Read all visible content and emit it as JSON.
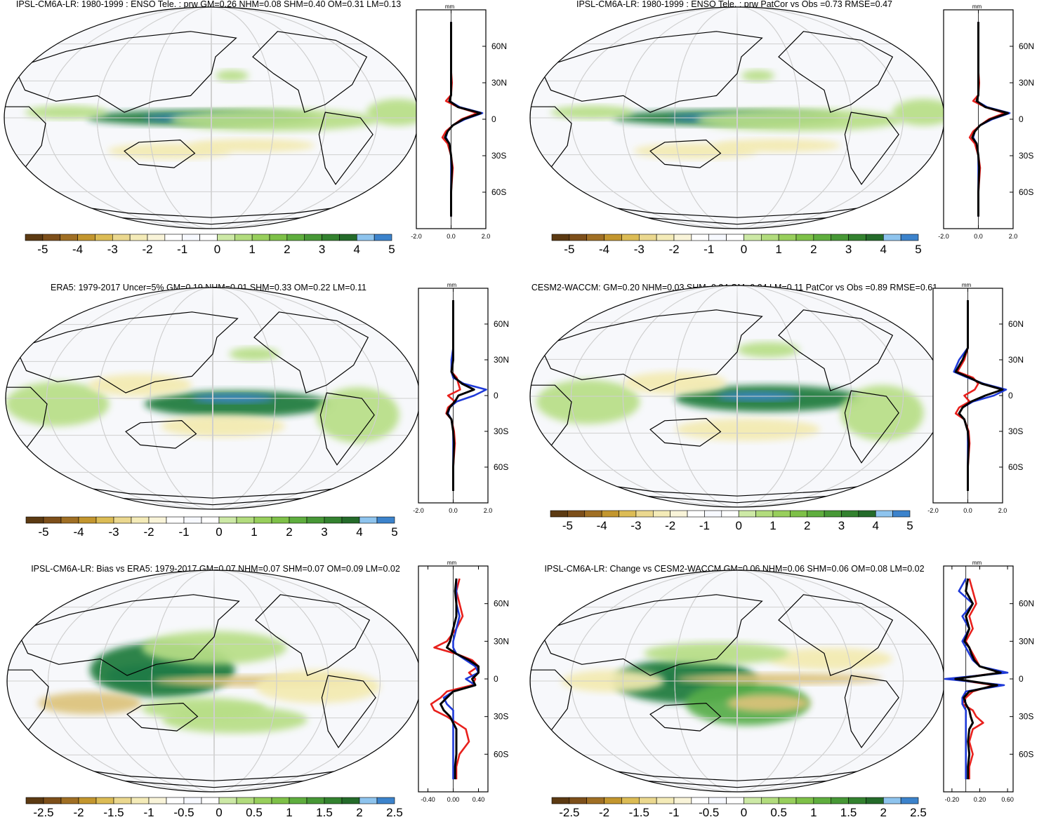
{
  "figure": {
    "colors": {
      "land_outline": "#000000",
      "ocean_background": "#f7f8fb",
      "grid": "#cfcfcf",
      "line_red": "#e8201c",
      "line_blue": "#1f3ad8",
      "line_black": "#000000",
      "pos_strong": "#1f7a3a",
      "pos_mid": "#56ad4a",
      "pos_light": "#b7de86",
      "pos_max": "#3e86d0",
      "pos_max_light": "#9ccbef",
      "neg_light": "#f3eab0",
      "neg_mid": "#dcc27a",
      "neg_strong": "#8a5a20"
    },
    "colorbar_colors": [
      "#5c3a12",
      "#7d4f1a",
      "#a06f24",
      "#c3962e",
      "#dcbc55",
      "#ebd88f",
      "#f4ebb8",
      "#f9f4d9",
      "#ffffff",
      "#f7f9ff",
      "#ffffff",
      "#cde9a6",
      "#b2dc7d",
      "#98cf5c",
      "#7ec148",
      "#5fae3e",
      "#479836",
      "#33822f",
      "#246b2a",
      "#8ec4ee",
      "#3c83cc"
    ],
    "zonal_axis_unit": "mm",
    "lat_labels": [
      "60N",
      "30N",
      "0",
      "30S",
      "60S"
    ]
  },
  "chart_data": [
    {
      "type": "heatmap",
      "title": "IPSL-CM6A-LR: 1980-1999 : ENSO Tele. : prw GM=0.26 NHM=0.08 SHM=0.40 OM=0.31 LM=0.13",
      "colorbar_labels": [
        "-5",
        "-4",
        "-3",
        "-2",
        "-1",
        "0",
        "1",
        "2",
        "3",
        "4",
        "5"
      ],
      "colorbar_range": [
        -5,
        5
      ],
      "zonal_ticks": [
        "-2.0",
        "0.0",
        "2.0"
      ],
      "zonal_xlim": [
        -2,
        2
      ],
      "zonal_profile": {
        "lat": [
          80,
          60,
          40,
          30,
          20,
          15,
          10,
          5,
          0,
          -5,
          -10,
          -15,
          -20,
          -30,
          -40,
          -60,
          -80
        ],
        "series": [
          {
            "color": "red",
            "values": [
              0,
              0,
              0,
              0.05,
              0,
              -0.3,
              0.4,
              1.5,
              0.6,
              0.1,
              -0.3,
              -0.5,
              -0.2,
              0,
              0.1,
              0,
              0
            ]
          },
          {
            "color": "blue",
            "values": [
              0,
              0,
              0,
              0,
              0,
              -0.1,
              0.5,
              1.8,
              0.8,
              0.1,
              -0.2,
              -0.3,
              -0.1,
              0,
              0,
              0,
              0
            ]
          },
          {
            "color": "black",
            "values": [
              0,
              0,
              0,
              0,
              0,
              -0.1,
              0.4,
              1.7,
              0.7,
              0.1,
              -0.2,
              -0.35,
              -0.1,
              0,
              0.05,
              0,
              0
            ]
          }
        ]
      }
    },
    {
      "type": "heatmap",
      "title": "IPSL-CM6A-LR: 1980-1999 : ENSO Tele. : prw PatCor vs Obs =0.73 RMSE=0.47",
      "colorbar_labels": [
        "-5",
        "-4",
        "-3",
        "-2",
        "-1",
        "0",
        "1",
        "2",
        "3",
        "4",
        "5"
      ],
      "colorbar_range": [
        -5,
        5
      ],
      "zonal_ticks": [
        "-2.0",
        "0.0",
        "2.0"
      ],
      "zonal_xlim": [
        -2,
        2
      ],
      "zonal_profile": {
        "lat": [
          80,
          60,
          40,
          30,
          20,
          15,
          10,
          5,
          0,
          -5,
          -10,
          -15,
          -20,
          -30,
          -40,
          -60,
          -80
        ],
        "series": [
          {
            "color": "red",
            "values": [
              0,
              0,
              0,
              0.05,
              0,
              -0.3,
              0.4,
              1.5,
              0.6,
              0.1,
              -0.3,
              -0.5,
              -0.2,
              0,
              0.1,
              0,
              0
            ]
          },
          {
            "color": "blue",
            "values": [
              0,
              0,
              0,
              0,
              0,
              -0.1,
              0.5,
              1.8,
              0.8,
              0.1,
              -0.2,
              -0.3,
              -0.1,
              0,
              0,
              0,
              0
            ]
          },
          {
            "color": "black",
            "values": [
              0,
              0,
              0,
              0,
              0,
              -0.1,
              0.4,
              1.7,
              0.7,
              0.1,
              -0.2,
              -0.35,
              -0.1,
              0,
              0.05,
              0,
              0
            ]
          }
        ]
      }
    },
    {
      "type": "heatmap",
      "title": "ERA5: 1979-2017 Uncer=5% GM=0.19 NHM=0.01 SHM=0.33 OM=0.22 LM=0.11",
      "colorbar_labels": [
        "-5",
        "-4",
        "-3",
        "-2",
        "-1",
        "0",
        "1",
        "2",
        "3",
        "4",
        "5"
      ],
      "colorbar_range": [
        -5,
        5
      ],
      "zonal_ticks": [
        "-2.0",
        "0.0",
        "2.0"
      ],
      "zonal_xlim": [
        -2,
        2
      ],
      "zonal_profile": {
        "lat": [
          80,
          60,
          40,
          30,
          20,
          15,
          10,
          5,
          0,
          -5,
          -10,
          -15,
          -20,
          -30,
          -40,
          -60,
          -80
        ],
        "series": [
          {
            "color": "red",
            "values": [
              0,
              0,
              0,
              0,
              -0.1,
              0.2,
              0.3,
              0.4,
              -0.3,
              0.1,
              -0.3,
              -0.4,
              -0.1,
              0.05,
              0.1,
              0,
              0
            ]
          },
          {
            "color": "blue",
            "values": [
              0,
              0,
              0,
              -0.1,
              -0.1,
              0,
              0.6,
              1.9,
              1.2,
              0.2,
              -0.2,
              -0.3,
              -0.1,
              0,
              0,
              0,
              0
            ]
          },
          {
            "color": "black",
            "values": [
              0,
              0,
              0,
              0,
              -0.1,
              0.1,
              0.5,
              1.2,
              0.3,
              0.1,
              -0.2,
              -0.35,
              -0.1,
              0,
              0.05,
              0,
              0
            ]
          }
        ]
      }
    },
    {
      "type": "heatmap",
      "title": "CESM2-WACCM: GM=0.20 NHM=0.03 SHM=0.34 OM=0.24 LM=0.11 PatCor vs Obs =0.89 RMSE=0.61",
      "colorbar_labels": [
        "-5",
        "-4",
        "-3",
        "-2",
        "-1",
        "0",
        "1",
        "2",
        "3",
        "4",
        "5"
      ],
      "colorbar_range": [
        -5,
        5
      ],
      "zonal_ticks": [
        "-2.0",
        "0.0",
        "2.0"
      ],
      "zonal_xlim": [
        -2,
        2
      ],
      "zonal_profile": {
        "lat": [
          80,
          60,
          40,
          30,
          20,
          15,
          10,
          5,
          0,
          -5,
          -10,
          -15,
          -20,
          -30,
          -40,
          -60,
          -80
        ],
        "series": [
          {
            "color": "red",
            "values": [
              0,
              0,
              0,
              -0.2,
              -0.6,
              0.3,
              0.6,
              0.4,
              -0.2,
              0.1,
              -0.5,
              -0.7,
              -0.2,
              0.05,
              0.1,
              0,
              0
            ]
          },
          {
            "color": "blue",
            "values": [
              0,
              0,
              0,
              -0.5,
              -0.8,
              0,
              0.9,
              2.2,
              1.5,
              0.3,
              -0.3,
              -0.5,
              -0.2,
              0,
              0,
              0,
              0
            ]
          },
          {
            "color": "black",
            "values": [
              0,
              0,
              0,
              -0.3,
              -0.7,
              0.1,
              0.8,
              2.0,
              1.0,
              0.2,
              -0.3,
              -0.5,
              -0.2,
              0,
              0.05,
              0,
              0
            ]
          }
        ]
      }
    },
    {
      "type": "heatmap",
      "title": "IPSL-CM6A-LR: Bias vs ERA5: 1979-2017 GM=0.07 NHM=0.07 SHM=0.07 OM=0.09 LM=0.02",
      "colorbar_labels": [
        "-2.5",
        "-2",
        "-1.5",
        "-1",
        "-0.5",
        "0",
        "0.5",
        "1",
        "1.5",
        "2",
        "2.5"
      ],
      "colorbar_range": [
        -2.5,
        2.5
      ],
      "zonal_ticks": [
        "-0.40",
        "0.00",
        "0.40"
      ],
      "zonal_xlim": [
        -0.55,
        0.55
      ],
      "zonal_profile": {
        "lat": [
          80,
          70,
          60,
          50,
          40,
          30,
          25,
          20,
          15,
          10,
          5,
          0,
          -5,
          -10,
          -15,
          -20,
          -25,
          -30,
          -40,
          -50,
          -60,
          -70,
          -80
        ],
        "series": [
          {
            "color": "red",
            "values": [
              0.1,
              0.05,
              0.1,
              0.15,
              0.05,
              -0.1,
              -0.3,
              0.05,
              0.3,
              0.4,
              0.25,
              0.35,
              0.3,
              -0.1,
              -0.2,
              -0.35,
              -0.3,
              -0.1,
              0.2,
              0.25,
              0.1,
              0.05,
              0.05
            ]
          },
          {
            "color": "blue",
            "values": [
              0.05,
              0.05,
              0.05,
              0.1,
              0.05,
              0,
              0,
              0.05,
              0.2,
              0.35,
              0.4,
              0.2,
              0.35,
              0,
              -0.15,
              -0.1,
              0,
              0,
              0,
              0,
              0,
              0,
              0
            ]
          },
          {
            "color": "black",
            "values": [
              0.05,
              0.03,
              0.05,
              0.05,
              0,
              -0.05,
              -0.1,
              0.05,
              0.25,
              0.4,
              0.4,
              0.3,
              0.35,
              0,
              -0.1,
              -0.2,
              -0.15,
              -0.05,
              0.05,
              0.05,
              0.05,
              0.03,
              0.03
            ]
          }
        ]
      }
    },
    {
      "type": "heatmap",
      "title": "IPSL-CM6A-LR: Change vs CESM2-WACCM GM=0.06 NHM=0.06 SHM=0.06 OM=0.08 LM=0.02",
      "colorbar_labels": [
        "-2.5",
        "-2",
        "-1.5",
        "-1",
        "-0.5",
        "0",
        "0.5",
        "1",
        "1.5",
        "2",
        "2.5"
      ],
      "colorbar_range": [
        -2.5,
        2.5
      ],
      "zonal_ticks": [
        "-0.20",
        "0.20",
        "0.60"
      ],
      "zonal_xlim": [
        -0.32,
        0.68
      ],
      "zonal_profile": {
        "lat": [
          80,
          70,
          60,
          50,
          40,
          30,
          25,
          20,
          15,
          10,
          5,
          0,
          -5,
          -10,
          -15,
          -20,
          -25,
          -30,
          -35,
          -40,
          -50,
          -60,
          -70,
          -80
        ],
        "series": [
          {
            "color": "red",
            "values": [
              0.05,
              0.1,
              0.15,
              0.05,
              0.1,
              0,
              0.05,
              0.1,
              0.15,
              0.2,
              0.5,
              -0.2,
              0.4,
              0.1,
              0,
              -0.05,
              0.1,
              0.15,
              0.25,
              0.1,
              0.05,
              0.1,
              0.05,
              0.05
            ]
          },
          {
            "color": "blue",
            "values": [
              0,
              -0.1,
              0.1,
              -0.05,
              0.05,
              -0.05,
              0,
              0.05,
              0.1,
              0.2,
              0.6,
              -0.3,
              0.55,
              0,
              -0.05,
              -0.05,
              0,
              0,
              0,
              0,
              0,
              0,
              0,
              0
            ]
          },
          {
            "color": "black",
            "values": [
              0.03,
              0,
              0.1,
              0,
              0.05,
              -0.02,
              0.05,
              0.08,
              0.12,
              0.2,
              0.5,
              -0.15,
              0.45,
              0.05,
              -0.03,
              0,
              0.05,
              0.07,
              0.1,
              0.05,
              0.03,
              0.05,
              0.03,
              0.03
            ]
          }
        ]
      }
    }
  ]
}
